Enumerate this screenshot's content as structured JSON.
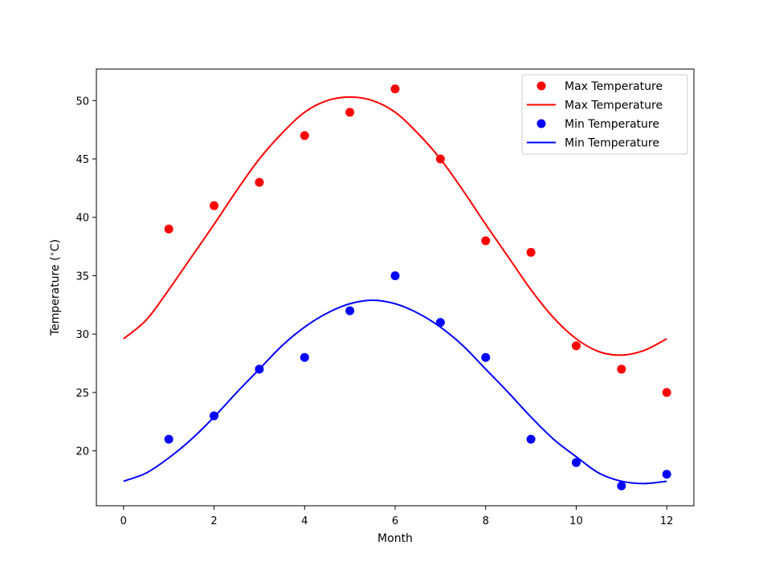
{
  "chart_data": {
    "type": "scatter",
    "title": "",
    "xlabel": "Month",
    "ylabel": "Temperature ($^\\circ$C)",
    "xlim": [
      -0.6,
      12.6
    ],
    "ylim": [
      15.3,
      52.7
    ],
    "xticks": [
      0,
      2,
      4,
      6,
      8,
      10,
      12
    ],
    "yticks": [
      20,
      25,
      30,
      35,
      40,
      45,
      50
    ],
    "grid": false,
    "legend_position": "top-right",
    "legend": [
      {
        "label": "Max Temperature",
        "kind": "marker",
        "color": "#ff0000"
      },
      {
        "label": "Max Temperature",
        "kind": "line",
        "color": "#ff0000"
      },
      {
        "label": "Min Temperature",
        "kind": "marker",
        "color": "#0000ff"
      },
      {
        "label": "Min Temperature",
        "kind": "line",
        "color": "#0000ff"
      }
    ],
    "series": [
      {
        "name": "Max Temperature",
        "kind": "scatter",
        "color": "#ff0000",
        "x": [
          1,
          2,
          3,
          4,
          5,
          6,
          7,
          8,
          9,
          10,
          11,
          12
        ],
        "y": [
          39,
          41,
          43,
          47,
          49,
          51,
          45,
          38,
          37,
          29,
          27,
          25
        ]
      },
      {
        "name": "Max Temperature",
        "kind": "line",
        "color": "#ff0000",
        "x": [
          0,
          0.5,
          1,
          1.5,
          2,
          2.5,
          3,
          3.5,
          4,
          4.5,
          5,
          5.5,
          6,
          6.5,
          7,
          7.5,
          8,
          8.5,
          9,
          9.5,
          10,
          10.5,
          11,
          11.5,
          12
        ],
        "y": [
          29.6,
          31.2,
          33.8,
          36.6,
          39.4,
          42.3,
          45.0,
          47.2,
          49.0,
          50.0,
          50.3,
          50.0,
          49.0,
          47.2,
          45.0,
          42.3,
          39.4,
          36.6,
          33.8,
          31.4,
          29.6,
          28.5,
          28.2,
          28.6,
          29.6
        ]
      },
      {
        "name": "Min Temperature",
        "kind": "scatter",
        "color": "#0000ff",
        "x": [
          1,
          2,
          3,
          4,
          5,
          6,
          7,
          8,
          9,
          10,
          11,
          12
        ],
        "y": [
          21,
          23,
          27,
          28,
          32,
          35,
          31,
          28,
          21,
          19,
          17,
          18
        ]
      },
      {
        "name": "Min Temperature",
        "kind": "line",
        "color": "#0000ff",
        "x": [
          0,
          0.5,
          1,
          1.5,
          2,
          2.5,
          3,
          3.5,
          4,
          4.5,
          5,
          5.5,
          6,
          6.5,
          7,
          7.5,
          8,
          8.5,
          9,
          9.5,
          10,
          10.5,
          11,
          11.5,
          12
        ],
        "y": [
          17.4,
          18.1,
          19.4,
          21.0,
          22.9,
          25.0,
          27.0,
          29.0,
          30.6,
          31.8,
          32.6,
          32.9,
          32.6,
          31.8,
          30.6,
          29.0,
          27.0,
          25.0,
          22.9,
          21.0,
          19.5,
          18.1,
          17.4,
          17.2,
          17.4
        ]
      }
    ]
  }
}
